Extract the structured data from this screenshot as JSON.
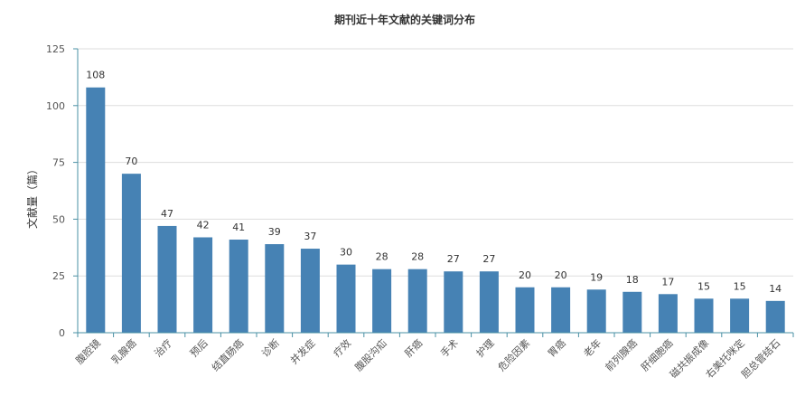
{
  "chart_data": {
    "type": "bar",
    "title": "期刊近十年文献的关键词分布",
    "xlabel": "",
    "ylabel": "文献量（篇）",
    "ylim": [
      0,
      125
    ],
    "yticks": [
      0,
      25,
      50,
      75,
      100,
      125
    ],
    "grid": true,
    "legend": "none",
    "categories": [
      "腹腔镜",
      "乳腺癌",
      "治疗",
      "预后",
      "结直肠癌",
      "诊断",
      "并发症",
      "疗效",
      "腹股沟疝",
      "肝癌",
      "手术",
      "护理",
      "危险因素",
      "胃癌",
      "老年",
      "前列腺癌",
      "肝细胞癌",
      "磁共振成像",
      "右美托咪定",
      "胆总管结石"
    ],
    "values": [
      108,
      70,
      47,
      42,
      41,
      39,
      37,
      30,
      28,
      28,
      27,
      27,
      20,
      20,
      19,
      18,
      17,
      15,
      15,
      14
    ],
    "colors": {
      "bar": "#4682b4",
      "axis": "#4a90a4",
      "grid": "#dddddd",
      "label": "#333333",
      "tick": "#555555"
    }
  }
}
